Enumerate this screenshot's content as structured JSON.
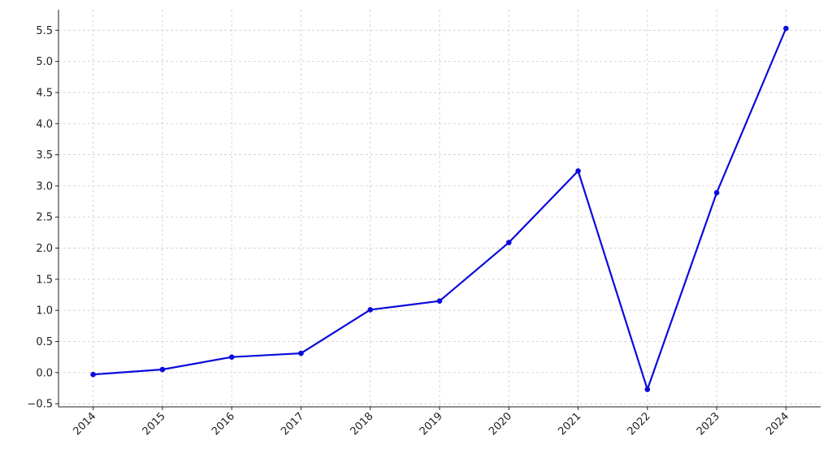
{
  "chart_data": {
    "type": "line",
    "title": "",
    "xlabel": "",
    "ylabel": "",
    "x": [
      2014,
      2015,
      2016,
      2017,
      2018,
      2019,
      2020,
      2021,
      2022,
      2023,
      2024
    ],
    "series": [
      {
        "values": [
          -0.03,
          0.05,
          0.25,
          0.31,
          1.01,
          1.15,
          2.09,
          3.24,
          -0.27,
          2.89,
          5.53
        ],
        "color": "#0a0adc"
      }
    ],
    "xlim": [
      2013.5,
      2024.5
    ],
    "ylim": [
      -0.55,
      5.83
    ],
    "yticks": [
      -0.5,
      0.0,
      0.5,
      1.0,
      1.5,
      2.0,
      2.5,
      3.0,
      3.5,
      4.0,
      4.5,
      5.0,
      5.5
    ],
    "ytick_labels": [
      "−0.5",
      "0.0",
      "0.5",
      "1.0",
      "1.5",
      "2.0",
      "2.5",
      "3.0",
      "3.5",
      "4.0",
      "4.5",
      "5.0",
      "5.5"
    ],
    "xtick_labels": [
      "2014",
      "2015",
      "2016",
      "2017",
      "2018",
      "2019",
      "2020",
      "2021",
      "2022",
      "2023",
      "2024"
    ],
    "grid": true,
    "markers": true
  }
}
